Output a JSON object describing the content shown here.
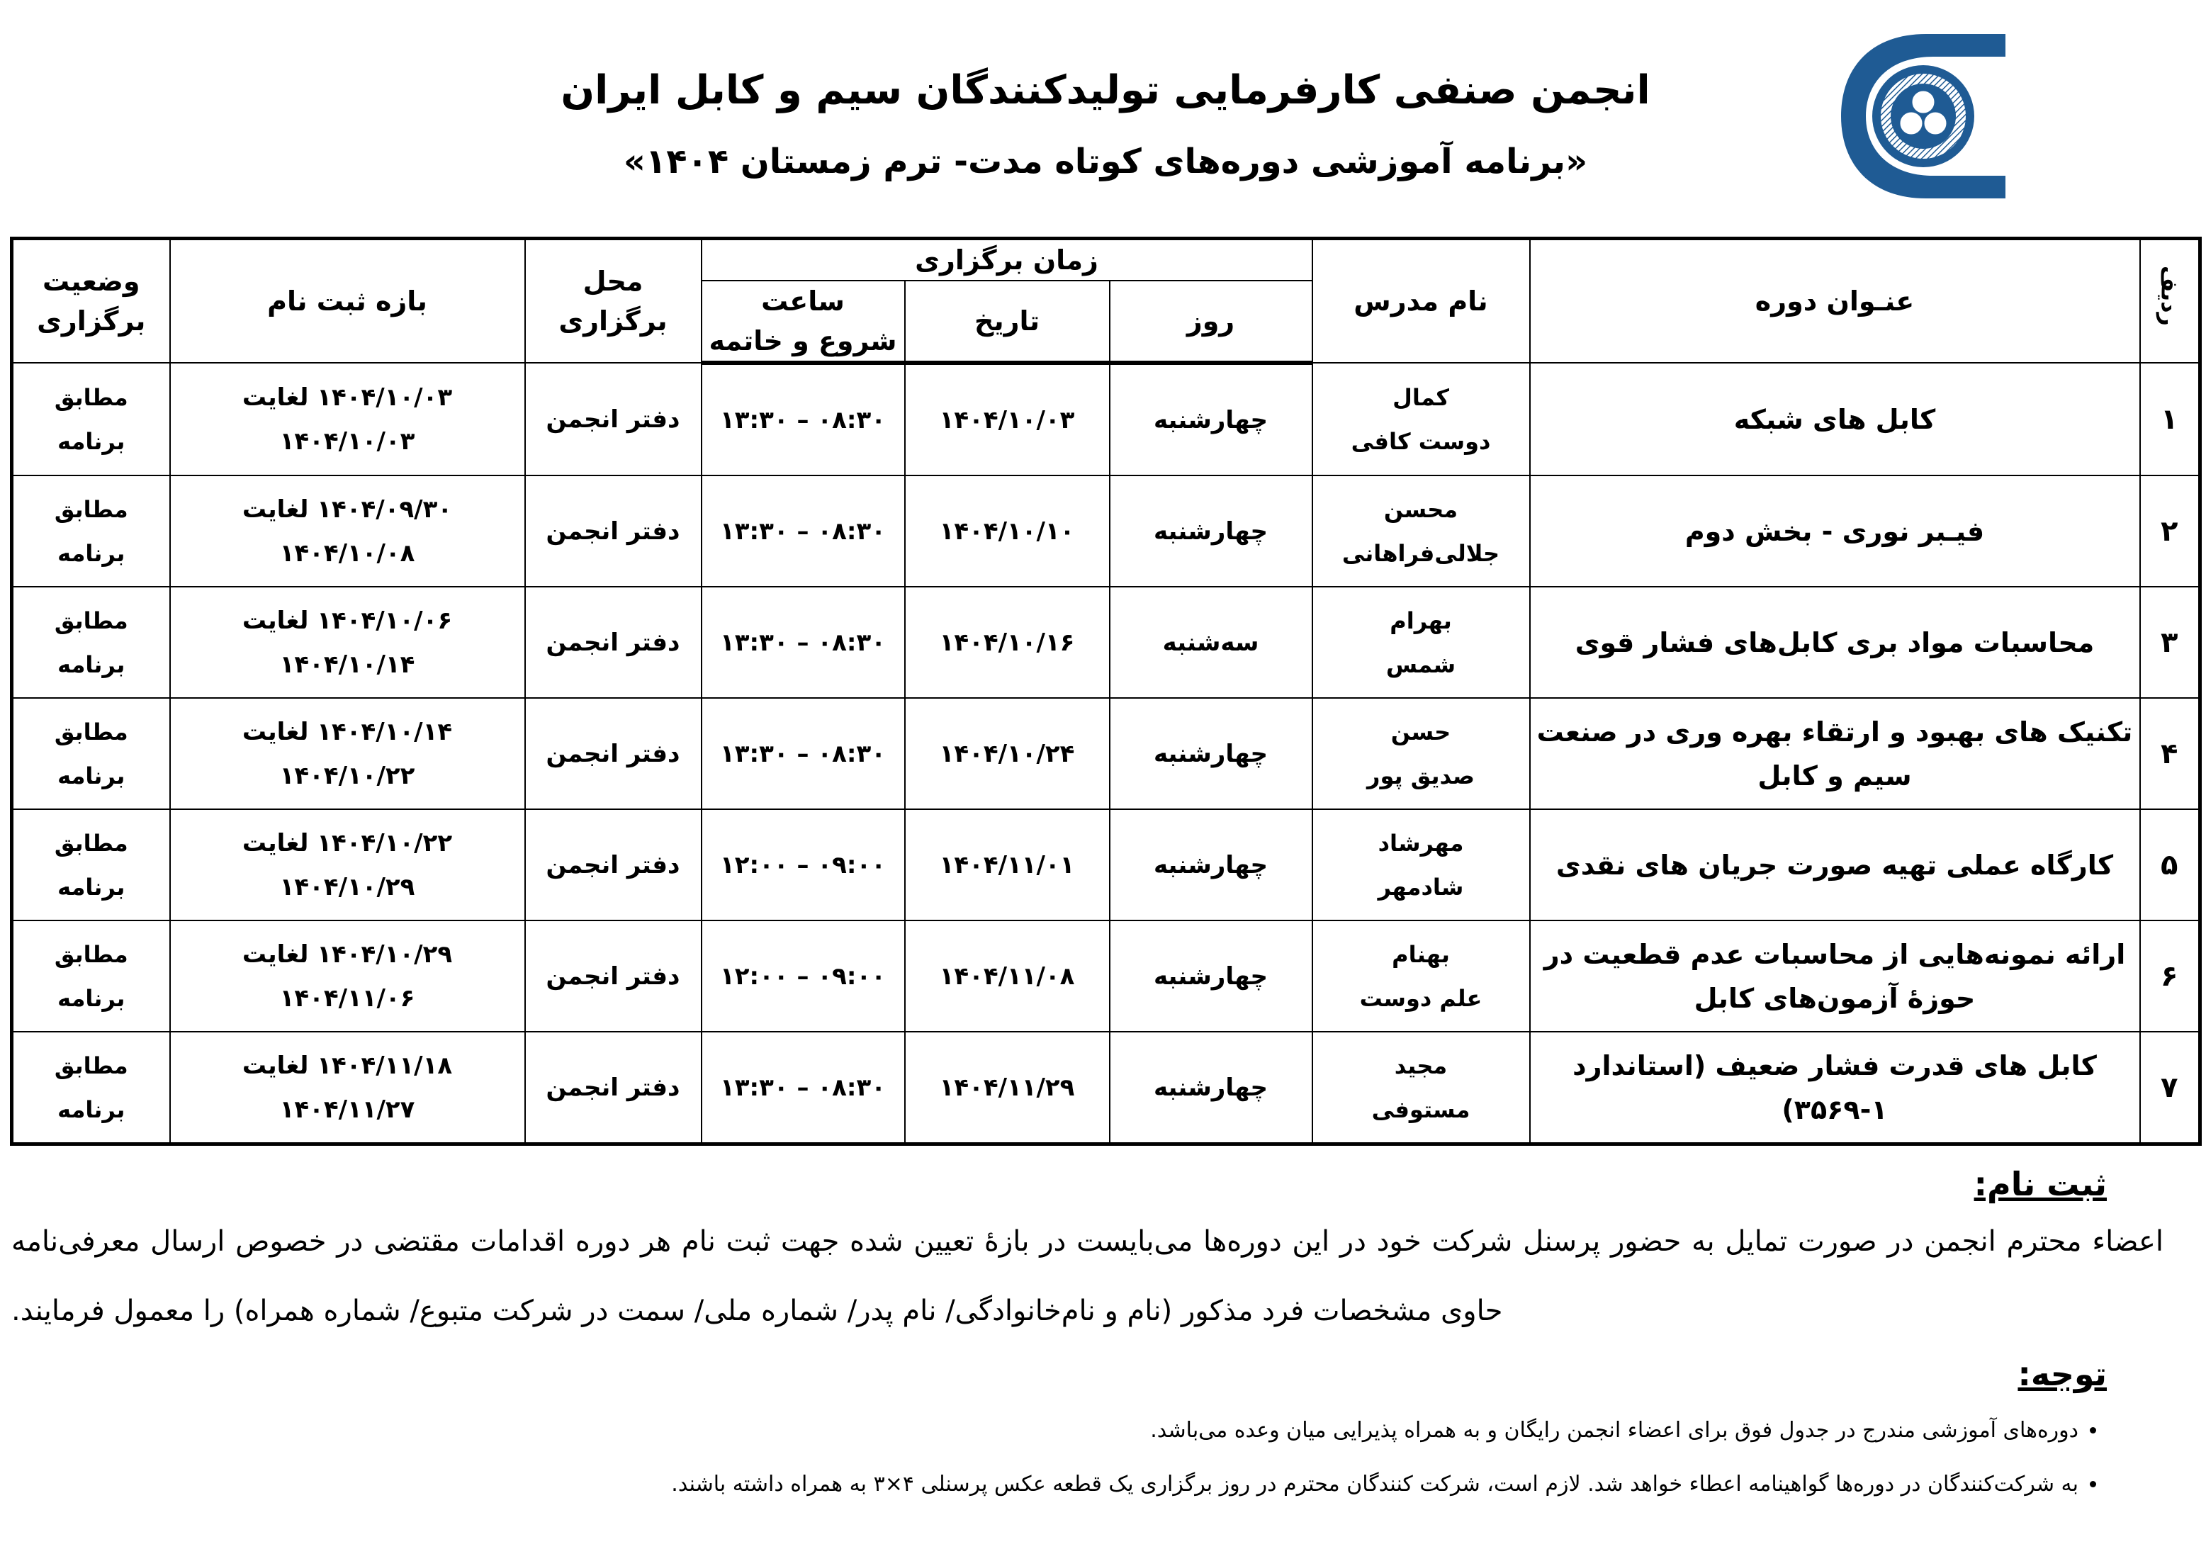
{
  "header": {
    "title": "انجمن صنفی کارفرمایی تولیدکنندگان سیم و کابل ایران",
    "subtitle": "«برنامه آموزشی دوره‌های کوتاه مدت- ترم زمستان ۱۴۰۴»",
    "logo_color": "#1f5b94"
  },
  "table": {
    "headers": {
      "row": "ردیف",
      "course": "عنـوان دوره",
      "teacher": "نام مدرس",
      "when": "زمان برگزاری",
      "day": "روز",
      "date": "تاریخ",
      "time_line1": "ساعت",
      "time_line2": "شروع و خاتمه",
      "place_line1": "محل",
      "place_line2": "برگزاری",
      "registration": "بازه ثبت نام",
      "status_line1": "وضعیت",
      "status_line2": "برگزاری"
    },
    "rows": [
      {
        "num": "۱",
        "course": "کابل های شبکه",
        "teacher1": "کمال",
        "teacher2": "دوست کافی",
        "day": "چهارشنبه",
        "date": "۱۴۰۴/۱۰/۰۳",
        "time": "۰۸:۳۰ – ۱۳:۳۰",
        "place": "دفتر انجمن",
        "registration": "۱۴۰۴/۱۰/۰۳ لغایت ۱۴۰۴/۱۰/۰۳",
        "status1": "مطابق",
        "status2": "برنامه"
      },
      {
        "num": "۲",
        "course": "فیـبر نوری - بخش دوم",
        "teacher1": "محسن",
        "teacher2": "جلالی‌فراهانی",
        "day": "چهارشنبه",
        "date": "۱۴۰۴/۱۰/۱۰",
        "time": "۰۸:۳۰ – ۱۳:۳۰",
        "place": "دفتر انجمن",
        "registration": "۱۴۰۴/۰۹/۳۰ لغایت ۱۴۰۴/۱۰/۰۸",
        "status1": "مطابق",
        "status2": "برنامه"
      },
      {
        "num": "۳",
        "course": "محاسبات مواد بری کابل‌های فشار قوی",
        "teacher1": "بهرام",
        "teacher2": "شمس",
        "day": "سه‌شنبه",
        "date": "۱۴۰۴/۱۰/۱۶",
        "time": "۰۸:۳۰ – ۱۳:۳۰",
        "place": "دفتر انجمن",
        "registration": "۱۴۰۴/۱۰/۰۶ لغایت ۱۴۰۴/۱۰/۱۴",
        "status1": "مطابق",
        "status2": "برنامه"
      },
      {
        "num": "۴",
        "course": "تکنیک های بهبود و ارتقاء بهره وری در صنعت سیم و کابل",
        "teacher1": "حسن",
        "teacher2": "صدیق پور",
        "day": "چهارشنبه",
        "date": "۱۴۰۴/۱۰/۲۴",
        "time": "۰۸:۳۰ – ۱۳:۳۰",
        "place": "دفتر انجمن",
        "registration": "۱۴۰۴/۱۰/۱۴ لغایت ۱۴۰۴/۱۰/۲۲",
        "status1": "مطابق",
        "status2": "برنامه"
      },
      {
        "num": "۵",
        "course": "کارگاه عملی تهیه صورت جریان های نقدی",
        "teacher1": "مهرشاد",
        "teacher2": "شادمهر",
        "day": "چهارشنبه",
        "date": "۱۴۰۴/۱۱/۰۱",
        "time": "۰۹:۰۰ – ۱۲:۰۰",
        "place": "دفتر انجمن",
        "registration": "۱۴۰۴/۱۰/۲۲ لغایت ۱۴۰۴/۱۰/۲۹",
        "status1": "مطابق",
        "status2": "برنامه"
      },
      {
        "num": "۶",
        "course": "ارائه نمونه‌هایی از محاسبات عدم قطعیت در حوزهٔ آزمون‌های کابل",
        "teacher1": "بهنام",
        "teacher2": "علم دوست",
        "day": "چهارشنبه",
        "date": "۱۴۰۴/۱۱/۰۸",
        "time": "۰۹:۰۰ – ۱۲:۰۰",
        "place": "دفتر انجمن",
        "registration": "۱۴۰۴/۱۰/۲۹ لغایت ۱۴۰۴/۱۱/۰۶",
        "status1": "مطابق",
        "status2": "برنامه"
      },
      {
        "num": "۷",
        "course": "کابل های قدرت فشار ضعیف (استاندارد ۱-۳۵۶۹)",
        "teacher1": "مجید",
        "teacher2": "مستوفی",
        "day": "چهارشنبه",
        "date": "۱۴۰۴/۱۱/۲۹",
        "time": "۰۸:۳۰ – ۱۳:۳۰",
        "place": "دفتر انجمن",
        "registration": "۱۴۰۴/۱۱/۱۸ لغایت ۱۴۰۴/۱۱/۲۷",
        "status1": "مطابق",
        "status2": "برنامه"
      }
    ]
  },
  "registration": {
    "heading": "ثبت نام:",
    "text": "اعضاء محترم انجمن در صورت تمایل به حضور پرسنل شرکت خود در این دوره‌ها می‌بایست در بازهٔ تعیین شده جهت ثبت نام هر دوره اقدامات مقتضی در خصوص ارسال معرفی‌نامه حاوی مشخصات فرد مذکور (نام و نام‌خانوادگی/ نام پدر/ شماره ملی/ سمت در شرکت متبوع/ شماره همراه) را معمول فرمایند."
  },
  "notes": {
    "heading": "توجه:",
    "items": [
      "دوره‌های آموزشی مندرج در جدول فوق برای اعضاء انجمن رایگان و به همراه پذیرایی میان وعده می‌باشد.",
      "به شرکت‌کنندگان در دوره‌ها گواهینامه اعطاء خواهد شد. لازم است، شرکت کنندگان محترم در روز برگزاری یک قطعه عکس پرسنلی ۴×۳ به همراه داشته باشند."
    ]
  }
}
